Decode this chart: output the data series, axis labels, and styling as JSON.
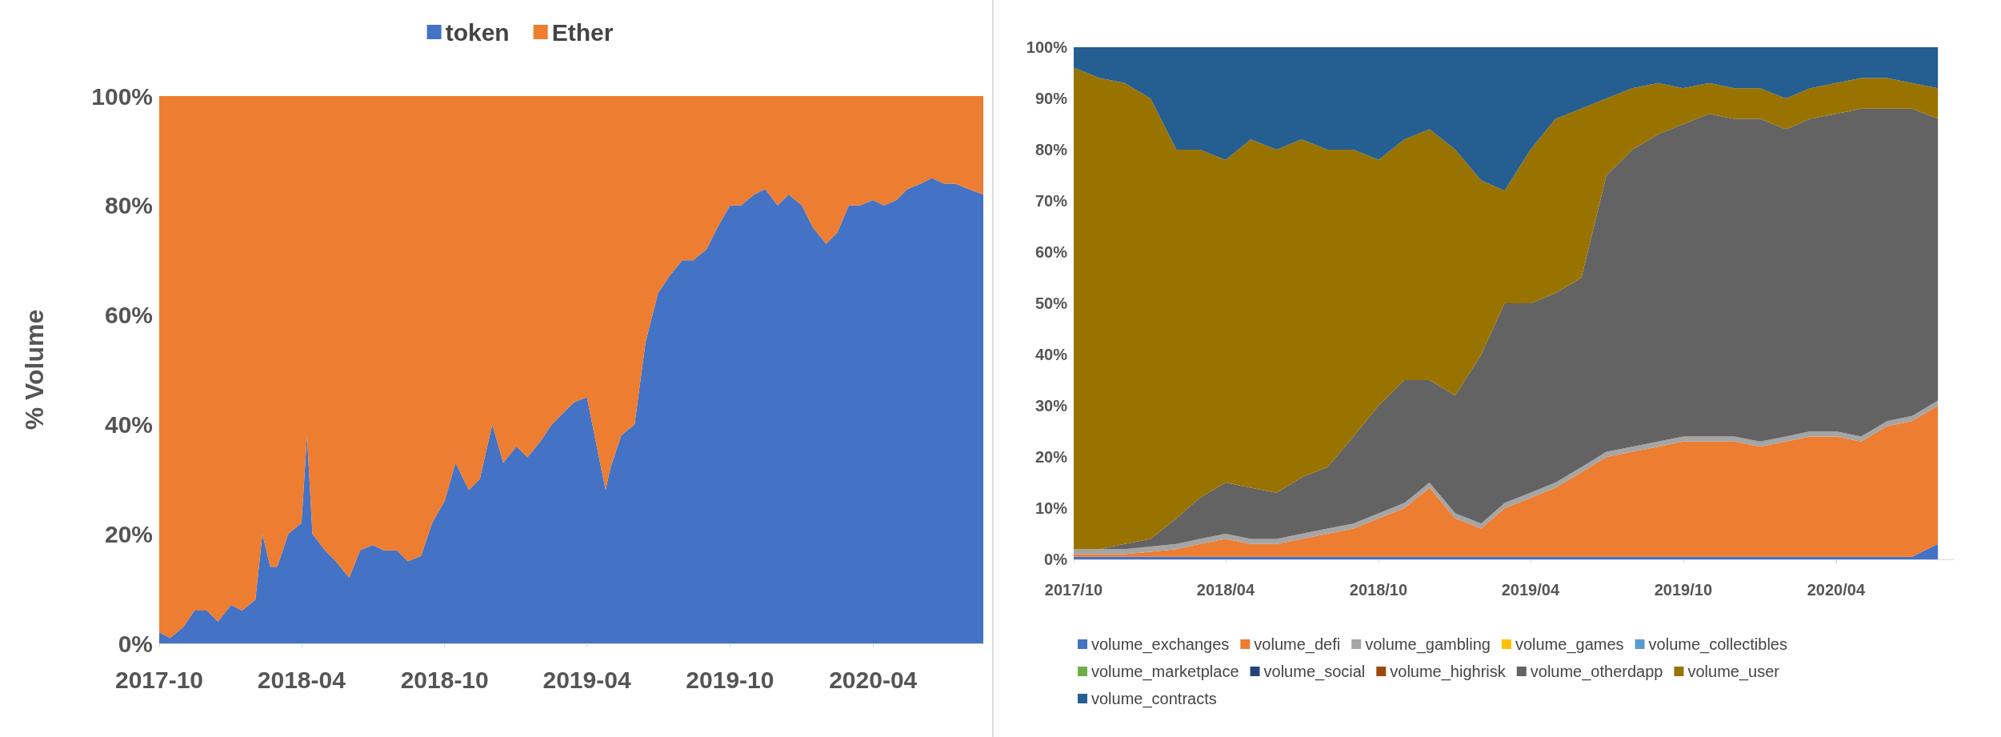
{
  "chart_data": [
    {
      "type": "area",
      "stacked": true,
      "ylabel": "% Volume",
      "legend": "top",
      "x": [
        "2017-10-01",
        "2017-10-15",
        "2017-11-01",
        "2017-11-15",
        "2017-12-01",
        "2017-12-15",
        "2018-01-01",
        "2018-01-15",
        "2018-02-01",
        "2018-02-10",
        "2018-02-20",
        "2018-03-01",
        "2018-03-15",
        "2018-04-01",
        "2018-04-08",
        "2018-04-15",
        "2018-05-01",
        "2018-05-15",
        "2018-06-01",
        "2018-06-15",
        "2018-07-01",
        "2018-07-15",
        "2018-08-01",
        "2018-08-15",
        "2018-09-01",
        "2018-09-15",
        "2018-10-01",
        "2018-10-15",
        "2018-11-01",
        "2018-11-15",
        "2018-12-01",
        "2018-12-15",
        "2019-01-01",
        "2019-01-15",
        "2019-02-01",
        "2019-02-15",
        "2019-03-01",
        "2019-03-15",
        "2019-04-01",
        "2019-04-15",
        "2019-04-25",
        "2019-05-01",
        "2019-05-15",
        "2019-06-01",
        "2019-06-15",
        "2019-07-01",
        "2019-07-15",
        "2019-08-01",
        "2019-08-15",
        "2019-09-01",
        "2019-09-15",
        "2019-10-01",
        "2019-10-15",
        "2019-11-01",
        "2019-11-15",
        "2019-12-01",
        "2019-12-15",
        "2020-01-01",
        "2020-01-15",
        "2020-02-01",
        "2020-02-15",
        "2020-03-01",
        "2020-03-15",
        "2020-04-01",
        "2020-04-15",
        "2020-05-01",
        "2020-05-15",
        "2020-06-01",
        "2020-06-15",
        "2020-07-01",
        "2020-07-15",
        "2020-08-01",
        "2020-08-20"
      ],
      "series": [
        {
          "name": "token",
          "color": "#4472c4",
          "values": [
            2,
            1,
            3,
            6,
            6,
            4,
            7,
            6,
            8,
            20,
            14,
            14,
            20,
            22,
            38,
            20,
            17,
            15,
            12,
            17,
            18,
            17,
            17,
            15,
            16,
            22,
            26,
            33,
            28,
            30,
            40,
            33,
            36,
            34,
            37,
            40,
            42,
            44,
            45,
            35,
            28,
            32,
            38,
            40,
            55,
            64,
            67,
            70,
            70,
            72,
            76,
            80,
            80,
            82,
            83,
            80,
            82,
            80,
            76,
            73,
            75,
            80,
            80,
            81,
            80,
            81,
            83,
            84,
            85,
            84,
            84,
            83,
            82
          ]
        },
        {
          "name": "Ether",
          "color": "#ed7d31",
          "values": [
            98,
            99,
            97,
            94,
            94,
            96,
            93,
            94,
            92,
            80,
            86,
            86,
            80,
            78,
            62,
            80,
            83,
            85,
            88,
            83,
            82,
            83,
            83,
            85,
            84,
            78,
            74,
            67,
            72,
            70,
            60,
            67,
            64,
            66,
            63,
            60,
            58,
            56,
            55,
            65,
            72,
            68,
            62,
            60,
            45,
            36,
            33,
            30,
            30,
            28,
            24,
            20,
            20,
            18,
            17,
            20,
            18,
            20,
            24,
            27,
            25,
            20,
            20,
            19,
            20,
            19,
            17,
            16,
            15,
            16,
            16,
            17,
            18
          ]
        }
      ],
      "xlim": [
        "2017-10-01",
        "2020-08-20"
      ],
      "xticks": [
        {
          "value": "2017-10",
          "label": "2017-10"
        },
        {
          "value": "2018-04",
          "label": "2018-04"
        },
        {
          "value": "2018-10",
          "label": "2018-10"
        },
        {
          "value": "2019-04",
          "label": "2019-04"
        },
        {
          "value": "2019-10",
          "label": "2019-10"
        },
        {
          "value": "2020-04",
          "label": "2020-04"
        }
      ],
      "ylim": [
        0,
        100
      ],
      "yticks": [
        {
          "value": 0,
          "label": "0%"
        },
        {
          "value": 20,
          "label": "20%"
        },
        {
          "value": 40,
          "label": "40%"
        },
        {
          "value": 60,
          "label": "60%"
        },
        {
          "value": 80,
          "label": "80%"
        },
        {
          "value": 100,
          "label": "100%"
        }
      ]
    },
    {
      "type": "area",
      "stacked": true,
      "legend": "bottom",
      "x": [
        "2017-10",
        "2017-11",
        "2017-12",
        "2018-01",
        "2018-02",
        "2018-03",
        "2018-04",
        "2018-05",
        "2018-06",
        "2018-07",
        "2018-08",
        "2018-09",
        "2018-10",
        "2018-11",
        "2018-12",
        "2019-01",
        "2019-02",
        "2019-03",
        "2019-04",
        "2019-05",
        "2019-06",
        "2019-07",
        "2019-08",
        "2019-09",
        "2019-10",
        "2019-11",
        "2019-12",
        "2020-01",
        "2020-02",
        "2020-03",
        "2020-04",
        "2020-05",
        "2020-06",
        "2020-07",
        "2020-08"
      ],
      "series": [
        {
          "name": "volume_exchanges",
          "color": "#4472c4",
          "values": [
            0.5,
            0.5,
            0.5,
            0.5,
            0.5,
            0.5,
            0.5,
            0.5,
            0.5,
            0.5,
            0.5,
            0.5,
            0.5,
            0.5,
            0.5,
            0.5,
            0.5,
            0.5,
            0.5,
            0.5,
            0.5,
            0.5,
            0.5,
            0.5,
            0.5,
            0.5,
            0.5,
            0.5,
            0.5,
            0.5,
            0.5,
            0.5,
            0.5,
            0.5,
            3
          ]
        },
        {
          "name": "volume_defi",
          "color": "#ed7d31",
          "values": [
            0.5,
            0.5,
            0.5,
            1,
            1.5,
            2.5,
            3.5,
            2.5,
            2.5,
            3.5,
            4.5,
            5.5,
            7.5,
            9.5,
            13.5,
            7.5,
            5.5,
            9.5,
            11.5,
            13.5,
            16.5,
            19.5,
            20.5,
            21.5,
            22.5,
            22.5,
            22.5,
            21.5,
            22.5,
            23.5,
            23.5,
            22.5,
            25.5,
            26.5,
            27
          ]
        },
        {
          "name": "volume_gambling",
          "color": "#a5a5a5",
          "values": [
            1,
            1,
            1,
            1,
            1,
            1,
            1,
            1,
            1,
            1,
            1,
            1,
            1,
            1,
            1,
            1,
            1,
            1,
            1,
            1,
            1,
            1,
            1,
            1,
            1,
            1,
            1,
            1,
            1,
            1,
            1,
            1,
            1,
            1,
            1
          ]
        },
        {
          "name": "volume_games",
          "color": "#ffc000",
          "values": [
            null,
            null,
            null,
            null,
            null,
            null,
            null,
            null,
            null,
            null,
            null,
            null,
            null,
            null,
            null,
            null,
            null,
            null,
            null,
            null,
            null,
            null,
            null,
            null,
            null,
            null,
            null,
            null,
            null,
            null,
            null,
            null,
            null,
            null,
            null
          ]
        },
        {
          "name": "volume_collectibles",
          "color": "#5b9bd5",
          "values": [
            null,
            null,
            null,
            null,
            null,
            null,
            null,
            null,
            null,
            null,
            null,
            null,
            null,
            null,
            null,
            null,
            null,
            null,
            null,
            null,
            null,
            null,
            null,
            null,
            null,
            null,
            null,
            null,
            null,
            null,
            null,
            null,
            null,
            null,
            null
          ]
        },
        {
          "name": "volume_marketplace",
          "color": "#70ad47",
          "values": [
            null,
            null,
            null,
            null,
            null,
            null,
            null,
            null,
            null,
            null,
            null,
            null,
            null,
            null,
            null,
            null,
            null,
            null,
            null,
            null,
            null,
            null,
            null,
            null,
            null,
            null,
            null,
            null,
            null,
            null,
            null,
            null,
            null,
            null,
            null
          ]
        },
        {
          "name": "volume_social",
          "color": "#264478",
          "values": [
            null,
            null,
            null,
            null,
            null,
            null,
            null,
            null,
            null,
            null,
            null,
            null,
            null,
            null,
            null,
            null,
            null,
            null,
            null,
            null,
            null,
            null,
            null,
            null,
            null,
            null,
            null,
            null,
            null,
            null,
            null,
            null,
            null,
            null,
            null
          ]
        },
        {
          "name": "volume_highrisk",
          "color": "#9e480e",
          "values": [
            null,
            null,
            null,
            null,
            null,
            null,
            null,
            null,
            null,
            null,
            null,
            null,
            null,
            null,
            null,
            null,
            null,
            null,
            null,
            null,
            null,
            null,
            null,
            null,
            null,
            null,
            null,
            null,
            null,
            null,
            null,
            null,
            null,
            null,
            null
          ]
        },
        {
          "name": "volume_otherdapp",
          "color": "#636363",
          "values": [
            0,
            0,
            1,
            1.5,
            5,
            8,
            10,
            10,
            9,
            11,
            12,
            17,
            21,
            24,
            20,
            23,
            33,
            39,
            37,
            37,
            37,
            54,
            58,
            60,
            61,
            63,
            62,
            63,
            60,
            61,
            62,
            64,
            61,
            60,
            55
          ]
        },
        {
          "name": "volume_user",
          "color": "#997300",
          "values": [
            94,
            92,
            90,
            86,
            72,
            68,
            63,
            68,
            67,
            66,
            62,
            56,
            48,
            47,
            49,
            48,
            34,
            22,
            30,
            34,
            33,
            15,
            12,
            10,
            7,
            6,
            6,
            6,
            6,
            6,
            6,
            6,
            6,
            5,
            6
          ]
        },
        {
          "name": "volume_contracts",
          "color": "#255e91",
          "values": [
            4,
            6,
            7,
            10,
            20,
            20,
            22,
            18,
            20,
            18,
            20,
            20,
            22,
            18,
            16,
            20,
            26,
            28,
            20,
            14,
            12,
            10,
            8,
            7,
            8,
            7,
            8,
            8,
            10,
            8,
            7,
            6,
            6,
            7,
            8
          ]
        }
      ],
      "xlim": [
        "2017-10-01",
        "2020-08-20"
      ],
      "xticks": [
        {
          "value": "2017-10",
          "label": "2017/10"
        },
        {
          "value": "2018-04",
          "label": "2018/04"
        },
        {
          "value": "2018-10",
          "label": "2018/10"
        },
        {
          "value": "2019-04",
          "label": "2019/04"
        },
        {
          "value": "2019-10",
          "label": "2019/10"
        },
        {
          "value": "2020-04",
          "label": "2020/04"
        }
      ],
      "ylim": [
        0,
        100
      ],
      "yticks": [
        {
          "value": 0,
          "label": "0%"
        },
        {
          "value": 10,
          "label": "10%"
        },
        {
          "value": 20,
          "label": "20%"
        },
        {
          "value": 30,
          "label": "30%"
        },
        {
          "value": 40,
          "label": "40%"
        },
        {
          "value": 50,
          "label": "50%"
        },
        {
          "value": 60,
          "label": "60%"
        },
        {
          "value": 70,
          "label": "70%"
        },
        {
          "value": 80,
          "label": "80%"
        },
        {
          "value": 90,
          "label": "90%"
        },
        {
          "value": 100,
          "label": "100%"
        }
      ]
    }
  ]
}
